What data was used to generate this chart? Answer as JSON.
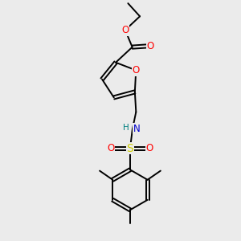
{
  "bg_color": "#ebebeb",
  "bond_color": "#1a1a1a",
  "atom_colors": {
    "O": "#ff0000",
    "N": "#0000cc",
    "S": "#cccc00",
    "C": "#1a1a1a",
    "H": "#008080"
  },
  "lw": 1.4,
  "fs": 8.5,
  "fs_small": 7.5
}
